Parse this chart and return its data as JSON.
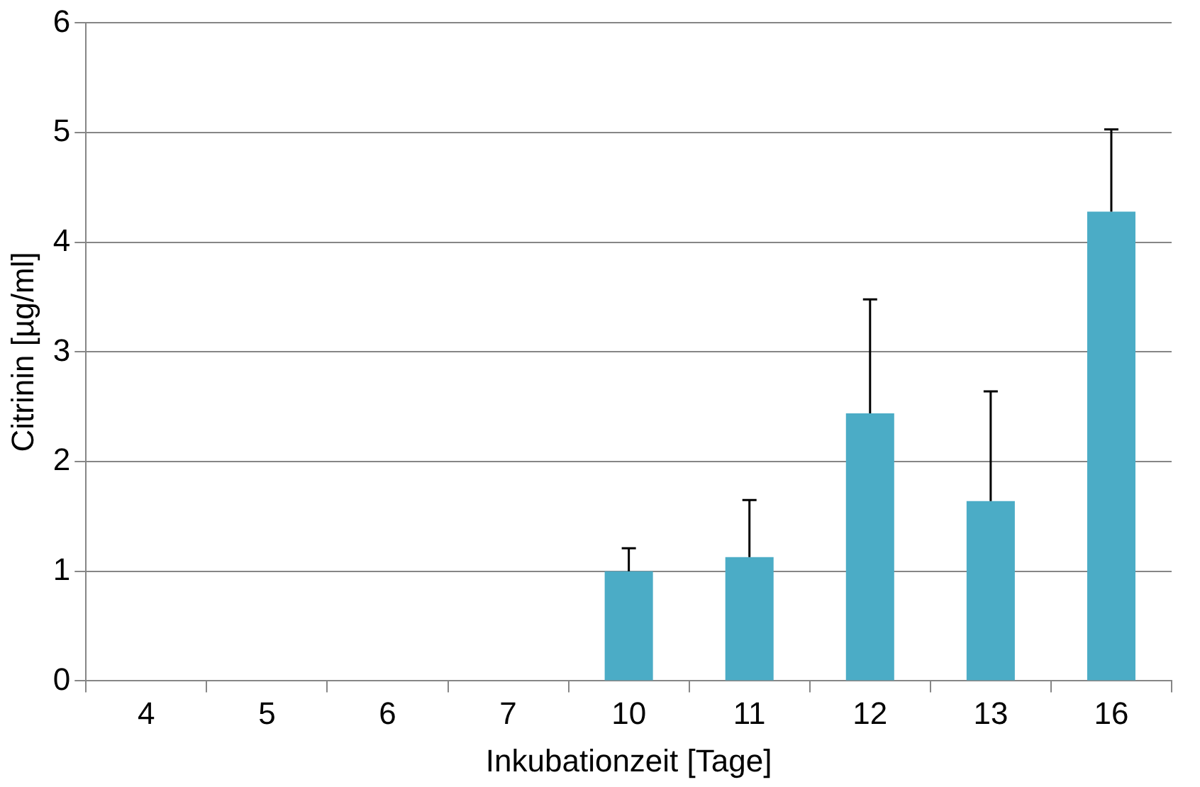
{
  "chart_data": {
    "type": "bar",
    "xlabel": "Inkubationzeit [Tage]",
    "ylabel": "Citrinin [µg/ml]",
    "categories": [
      "4",
      "5",
      "6",
      "7",
      "10",
      "11",
      "12",
      "13",
      "16"
    ],
    "values": [
      0,
      0,
      0,
      0,
      1.0,
      1.13,
      2.44,
      1.64,
      4.28
    ],
    "errors": [
      null,
      null,
      null,
      null,
      [
        1.0,
        1.21
      ],
      [
        1.13,
        1.65
      ],
      [
        2.44,
        3.48
      ],
      [
        1.64,
        2.64
      ],
      [
        4.28,
        5.03
      ]
    ],
    "color": "#4bacc6",
    "ylim": [
      0,
      6
    ],
    "yticks": [
      0,
      1,
      2,
      3,
      4,
      5,
      6
    ],
    "grid": "y",
    "legend": false
  }
}
